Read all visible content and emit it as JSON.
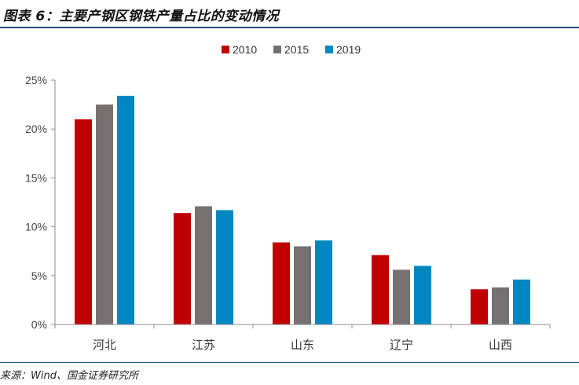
{
  "header": {
    "title": "图表 6：主要产钢区钢铁产量占比的变动情况"
  },
  "footer": {
    "source": "来源：Wind、国金证券研究所"
  },
  "colors": {
    "title_rule": "#1f4e79",
    "axis": "#8c8c8c"
  },
  "chart_data": {
    "type": "bar",
    "title": "",
    "xlabel": "",
    "ylabel": "",
    "categories": [
      "河北",
      "江苏",
      "山东",
      "辽宁",
      "山西"
    ],
    "series": [
      {
        "name": "2010",
        "color": "#c00000",
        "values": [
          21.0,
          11.4,
          8.4,
          7.1,
          3.6
        ]
      },
      {
        "name": "2015",
        "color": "#767171",
        "values": [
          22.5,
          12.1,
          8.0,
          5.6,
          3.8
        ]
      },
      {
        "name": "2019",
        "color": "#0087c1",
        "values": [
          23.4,
          11.7,
          8.6,
          6.0,
          4.6
        ]
      }
    ],
    "ylim": [
      0,
      25
    ],
    "yticks": [
      0,
      5,
      10,
      15,
      20,
      25
    ],
    "ytick_labels": [
      "0%",
      "5%",
      "10%",
      "15%",
      "20%",
      "25%"
    ],
    "grid": false,
    "legend_position": "top-center"
  }
}
